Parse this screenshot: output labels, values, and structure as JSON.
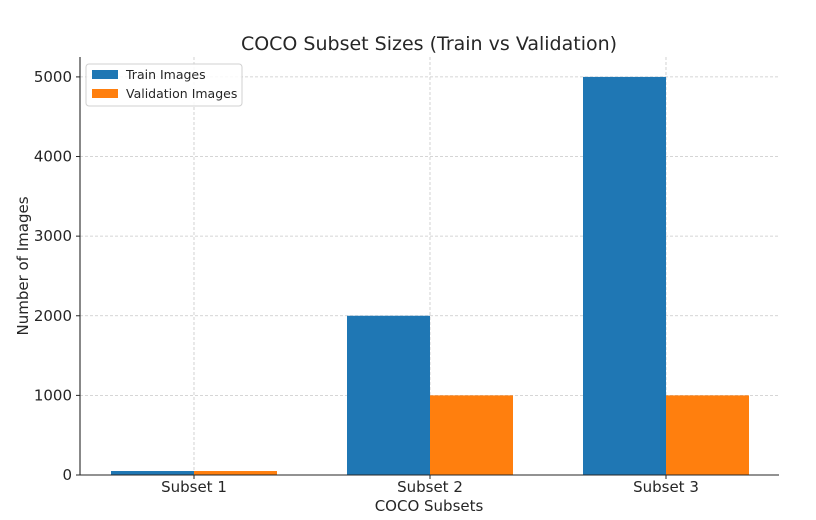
{
  "chart_data": {
    "type": "bar",
    "title": "COCO Subset Sizes (Train vs Validation)",
    "xlabel": "COCO Subsets",
    "ylabel": "Number of Images",
    "categories": [
      "Subset 1",
      "Subset 2",
      "Subset 3"
    ],
    "series": [
      {
        "name": "Train Images",
        "values": [
          50,
          2000,
          5000
        ],
        "color": "#1f77b4"
      },
      {
        "name": "Validation Images",
        "values": [
          50,
          1000,
          1000
        ],
        "color": "#ff7f0e"
      }
    ],
    "ylim": [
      0,
      5250
    ],
    "yticks": [
      0,
      1000,
      2000,
      3000,
      4000,
      5000
    ],
    "grid": true,
    "legend_position": "top-left"
  }
}
